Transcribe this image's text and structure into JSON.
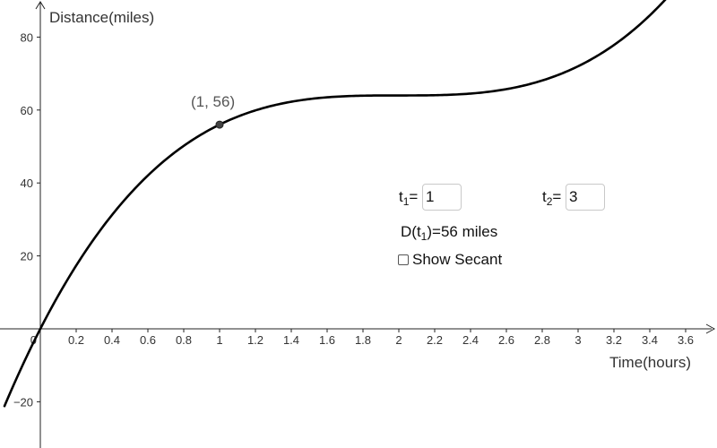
{
  "chart_data": {
    "type": "line",
    "xlabel": "Time(hours)",
    "ylabel": "Distance(miles)",
    "xlim": [
      -0.2,
      3.8
    ],
    "ylim": [
      -32,
      90
    ],
    "x_ticks": [
      0.2,
      0.4,
      0.6,
      0.8,
      1,
      1.2,
      1.4,
      1.6,
      1.8,
      2,
      2.2,
      2.4,
      2.6,
      2.8,
      3,
      3.2,
      3.4,
      3.6
    ],
    "y_ticks": [
      -20,
      20,
      40,
      60,
      80
    ],
    "origin_label": "0",
    "function": "D(t) = 8(t - 2)^3 + 64",
    "series": [
      {
        "x": [
          -0.2,
          0,
          0.2,
          0.4,
          0.6,
          0.8,
          1,
          1.2,
          1.4,
          1.6,
          1.8,
          2,
          2.2,
          2.4,
          2.6,
          2.8,
          3,
          3.2,
          3.4,
          3.5
        ],
        "y": [
          -21.2,
          0,
          17.3,
          31.2,
          42.0,
          50.2,
          56,
          59.9,
          62.3,
          63.5,
          63.9,
          64,
          64.1,
          64.5,
          65.7,
          68.1,
          72,
          77.8,
          86.0,
          91.0
        ]
      }
    ],
    "point": {
      "x": 1,
      "y": 56,
      "label": "(1, 56)"
    }
  },
  "controls": {
    "t1_label": "t",
    "t1_sub": "1",
    "t1_eq": "=",
    "t1_value": "1",
    "t2_label": "t",
    "t2_sub": "2",
    "t2_eq": "=",
    "t2_value": "3",
    "dt_prefix": "D(t",
    "dt_sub": "1",
    "dt_suffix": ")=56 miles",
    "secant_label": "Show Secant"
  },
  "colors": {
    "curve": "#000000",
    "axis": "#222222",
    "point": "#444444",
    "point_label": "#555555"
  }
}
